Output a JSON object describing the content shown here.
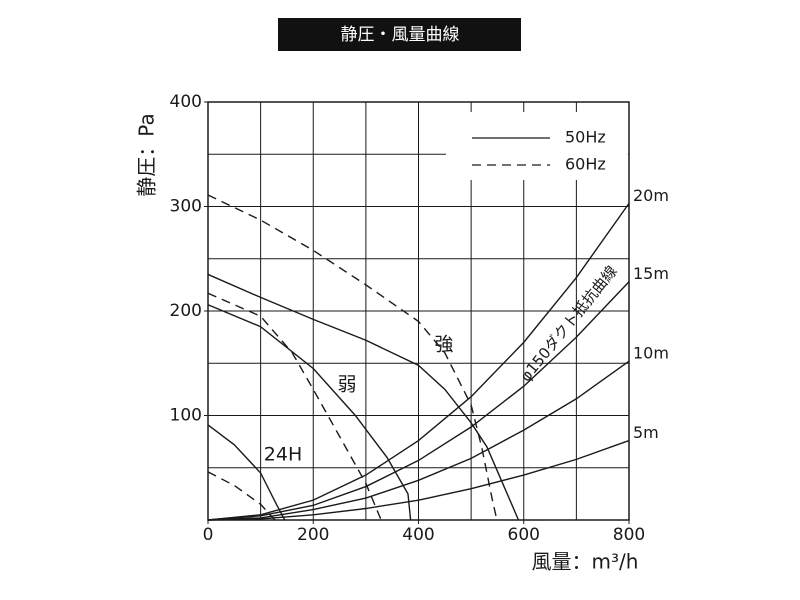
{
  "chart_data": {
    "type": "line",
    "title": "静圧・風量曲線",
    "x_label": "風量：m³/h",
    "y_label": "静圧：Pa",
    "xlim": [
      0,
      800
    ],
    "ylim": [
      0,
      400
    ],
    "xticks": [
      0,
      200,
      400,
      600,
      800
    ],
    "yticks": [
      100,
      200,
      300,
      400
    ],
    "xgrid": [
      100,
      200,
      300,
      400,
      500,
      600,
      700
    ],
    "ygrid": [
      50,
      100,
      150,
      200,
      250,
      300,
      350
    ],
    "grid": true,
    "color": "#1a1a1a",
    "legend_position": "upper right",
    "groups": [
      {
        "name": "50Hz",
        "dash": false,
        "series": [
          {
            "name": "強",
            "x": [
              0,
              100,
              200,
              300,
              400,
              450,
              500,
              530,
              560,
              590
            ],
            "values": [
              235,
              213,
              192,
              172,
              148,
              125,
              93,
              70,
              35,
              0
            ]
          },
          {
            "name": "弱",
            "x": [
              0,
              100,
              200,
              280,
              340,
              380,
              385
            ],
            "values": [
              206,
              185,
              145,
              100,
              60,
              25,
              0
            ]
          },
          {
            "name": "24H",
            "x": [
              0,
              50,
              100,
              130,
              146
            ],
            "values": [
              91,
              72,
              45,
              15,
              0
            ]
          }
        ]
      },
      {
        "name": "60Hz",
        "dash": true,
        "series": [
          {
            "x": [
              0,
              100,
              200,
              300,
              400,
              450,
              500,
              520,
              540,
              549
            ],
            "values": [
              311,
              287,
              258,
              225,
              190,
              160,
              110,
              70,
              20,
              0
            ]
          },
          {
            "x": [
              0,
              100,
              160,
              200,
              250,
              300,
              329
            ],
            "values": [
              217,
              195,
              160,
              125,
              80,
              35,
              0
            ]
          },
          {
            "x": [
              0,
              50,
              100,
              127
            ],
            "values": [
              46,
              33,
              15,
              0
            ]
          }
        ]
      }
    ],
    "resistance": {
      "name": "φ150ダクト抵抗曲線",
      "series": [
        {
          "name": "20m",
          "x": [
            0,
            100,
            200,
            300,
            400,
            500,
            600,
            700,
            800
          ],
          "values": [
            0,
            5,
            19,
            43,
            76,
            118,
            170,
            232,
            303
          ]
        },
        {
          "name": "15m",
          "x": [
            0,
            100,
            200,
            300,
            400,
            500,
            600,
            700,
            800
          ],
          "values": [
            0,
            4,
            14,
            32,
            57,
            89,
            128,
            175,
            228
          ]
        },
        {
          "name": "10m",
          "x": [
            0,
            100,
            200,
            300,
            400,
            500,
            600,
            700,
            800
          ],
          "values": [
            0,
            2,
            10,
            21,
            38,
            59,
            86,
            116,
            152
          ]
        },
        {
          "name": "5m",
          "x": [
            0,
            100,
            200,
            300,
            400,
            500,
            600,
            700,
            800
          ],
          "values": [
            0,
            1,
            5,
            11,
            19,
            30,
            43,
            58,
            76
          ]
        }
      ]
    }
  }
}
